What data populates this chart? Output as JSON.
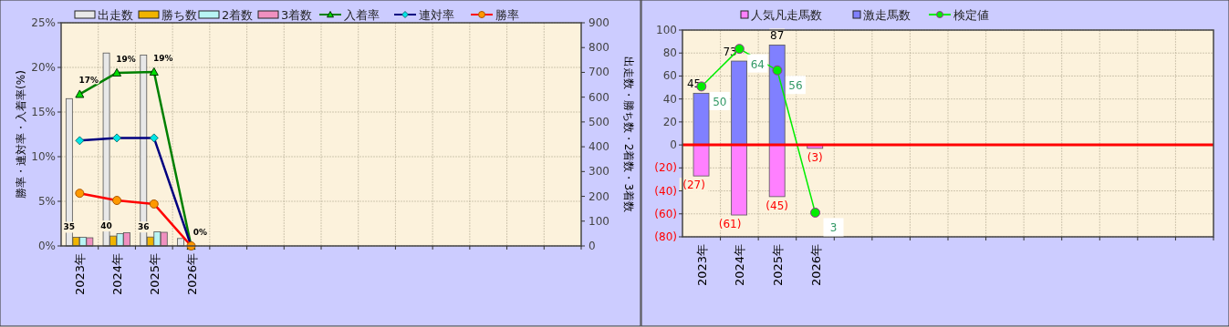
{
  "chart_data": [
    {
      "type": "bar",
      "ylabel": "勝率・連対率・入着率(%)",
      "y2label": "出走数・勝ち数・2着数・3着数",
      "categories": [
        "2023年",
        "2024年",
        "2025年",
        "2026年",
        null,
        null,
        null,
        null,
        null,
        null,
        null,
        null,
        null,
        null
      ],
      "ylim": [
        0,
        25
      ],
      "yticks": [
        {
          "value": 0,
          "label": "0%"
        },
        {
          "value": 5,
          "label": "5%"
        },
        {
          "value": 10,
          "label": "10%"
        },
        {
          "value": 15,
          "label": "15%"
        },
        {
          "value": 20,
          "label": "20%"
        },
        {
          "value": 25,
          "label": "25%"
        }
      ],
      "y2lim": [
        0,
        900
      ],
      "y2ticks": [
        0,
        100,
        200,
        300,
        400,
        500,
        600,
        700,
        800,
        900
      ],
      "grid": true,
      "legend": "top",
      "series": [
        {
          "name": "出走数",
          "axis": "y2",
          "color": "#e8e8e8",
          "values": [
            594,
            778,
            770,
            30,
            null,
            null,
            null,
            null,
            null,
            null,
            null,
            null,
            null,
            null
          ]
        },
        {
          "name": "勝ち数",
          "axis": "y2",
          "color": "#f0b400",
          "values": [
            35,
            40,
            36,
            0,
            null,
            null,
            null,
            null,
            null,
            null,
            null,
            null,
            null,
            null
          ],
          "value_labels": [
            "35",
            "40",
            "36",
            null,
            null,
            null,
            null,
            null,
            null,
            null,
            null,
            null,
            null,
            null
          ]
        },
        {
          "name": "2着数",
          "axis": "y2",
          "color": "#b8f4f4",
          "values": [
            35,
            50,
            57,
            0,
            null,
            null,
            null,
            null,
            null,
            null,
            null,
            null,
            null,
            null
          ]
        },
        {
          "name": "3着数",
          "axis": "y2",
          "color": "#f090c0",
          "values": [
            33,
            53,
            55,
            0,
            null,
            null,
            null,
            null,
            null,
            null,
            null,
            null,
            null,
            null
          ]
        },
        {
          "name": "入着率",
          "type": "line",
          "axis": "y",
          "color": "#008000",
          "marker": "triangle",
          "values": [
            17,
            19.4,
            19.5,
            0,
            null,
            null,
            null,
            null,
            null,
            null,
            null,
            null,
            null,
            null
          ],
          "value_labels": [
            "17%",
            "19%",
            "19%",
            "0%",
            null,
            null,
            null,
            null,
            null,
            null,
            null,
            null,
            null,
            null
          ]
        },
        {
          "name": "連対率",
          "type": "line",
          "axis": "y",
          "color": "#000080",
          "marker": "diamond",
          "values": [
            11.8,
            12.1,
            12.1,
            0,
            null,
            null,
            null,
            null,
            null,
            null,
            null,
            null,
            null,
            null
          ]
        },
        {
          "name": "勝率",
          "type": "line",
          "axis": "y",
          "color": "#ff0000",
          "marker": "circle",
          "values": [
            5.9,
            5.1,
            4.7,
            0,
            null,
            null,
            null,
            null,
            null,
            null,
            null,
            null,
            null,
            null
          ]
        }
      ]
    },
    {
      "type": "bar",
      "categories": [
        "2023年",
        "2024年",
        "2025年",
        "2026年",
        null,
        null,
        null,
        null,
        null,
        null,
        null,
        null,
        null,
        null
      ],
      "stacked": true,
      "ylim": [
        -80,
        100
      ],
      "yticks": [
        {
          "value": -80,
          "label": "(80)"
        },
        {
          "value": -60,
          "label": "(60)"
        },
        {
          "value": -40,
          "label": "(40)"
        },
        {
          "value": -20,
          "label": "(20)"
        },
        0,
        20,
        40,
        60,
        80,
        100
      ],
      "y2lim": [
        -6,
        71
      ],
      "grid": true,
      "legend": "top",
      "ref_lines": [
        {
          "axis": "y",
          "value": 0,
          "color": "#ff0000"
        }
      ],
      "series": [
        {
          "name": "人気凡走馬数",
          "axis": "y",
          "color": "#ff80ff",
          "values": [
            -27,
            -61,
            -45,
            -3,
            null,
            null,
            null,
            null,
            null,
            null,
            null,
            null,
            null,
            null
          ],
          "value_labels": [
            "(27)",
            "(61)",
            "(45)",
            "(3)",
            null,
            null,
            null,
            null,
            null,
            null,
            null,
            null,
            null,
            null
          ]
        },
        {
          "name": "激走馬数",
          "axis": "y",
          "color": "#8080ff",
          "values": [
            45,
            73,
            87,
            null,
            null,
            null,
            null,
            null,
            null,
            null,
            null,
            null,
            null,
            null
          ],
          "value_labels": [
            "45",
            "73",
            "87",
            null,
            null,
            null,
            null,
            null,
            null,
            null,
            null,
            null,
            null,
            null
          ]
        },
        {
          "name": "検定値",
          "type": "line",
          "axis": "y2",
          "color": "#00ee00",
          "marker": "circle",
          "values": [
            50,
            64,
            56,
            3,
            null,
            null,
            null,
            null,
            null,
            null,
            null,
            null,
            null,
            null
          ],
          "value_labels": [
            "50",
            "64",
            "56",
            "3",
            null,
            null,
            null,
            null,
            null,
            null,
            null,
            null,
            null,
            null
          ]
        }
      ]
    }
  ]
}
